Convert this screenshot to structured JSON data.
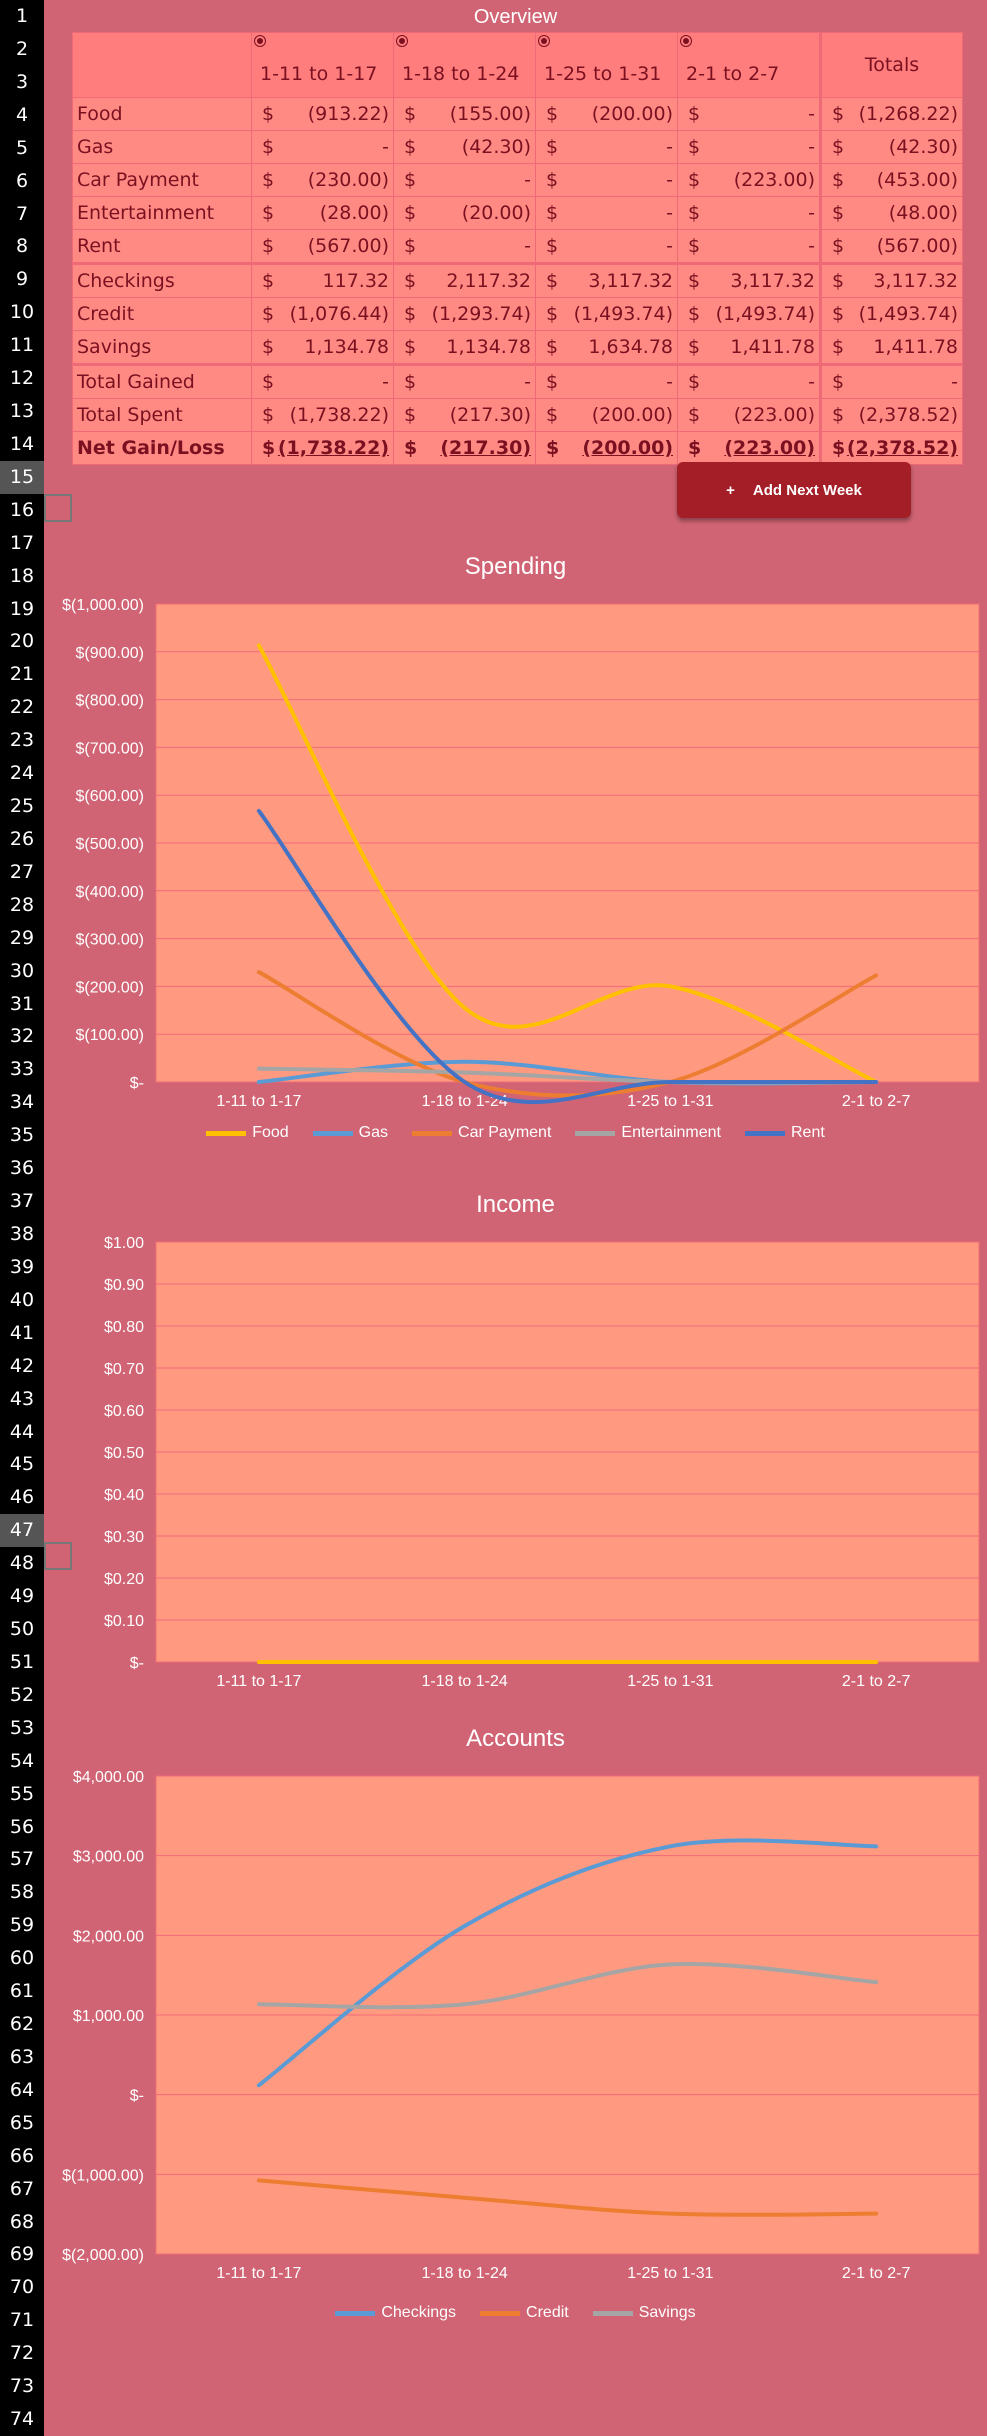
{
  "overview": {
    "title": "Overview",
    "periods": [
      "1-11 to 1-17",
      "1-18 to 1-24",
      "1-25 to 1-31",
      "2-1 to 2-7"
    ],
    "totals_label": "Totals",
    "currency": "$",
    "rows": [
      {
        "label": "Food",
        "values": [
          "(913.22)",
          "(155.00)",
          "(200.00)",
          "-"
        ],
        "total": "(1,268.22)"
      },
      {
        "label": "Gas",
        "values": [
          "-",
          "(42.30)",
          "-",
          "-"
        ],
        "total": "(42.30)"
      },
      {
        "label": "Car Payment",
        "values": [
          "(230.00)",
          "-",
          "-",
          "(223.00)"
        ],
        "total": "(453.00)"
      },
      {
        "label": "Entertainment",
        "values": [
          "(28.00)",
          "(20.00)",
          "-",
          "-"
        ],
        "total": "(48.00)"
      },
      {
        "label": "Rent",
        "values": [
          "(567.00)",
          "-",
          "-",
          "-"
        ],
        "total": "(567.00)"
      },
      {
        "label": "Checkings",
        "values": [
          "117.32",
          "2,117.32",
          "3,117.32",
          "3,117.32"
        ],
        "total": "3,117.32"
      },
      {
        "label": "Credit",
        "values": [
          "(1,076.44)",
          "(1,293.74)",
          "(1,493.74)",
          "(1,493.74)"
        ],
        "total": "(1,493.74)"
      },
      {
        "label": "Savings",
        "values": [
          "1,134.78",
          "1,134.78",
          "1,634.78",
          "1,411.78"
        ],
        "total": "1,411.78"
      },
      {
        "label": "Total Gained",
        "values": [
          "-",
          "-",
          "-",
          "-"
        ],
        "total": "-"
      },
      {
        "label": "Total Spent",
        "values": [
          "(1,738.22)",
          "(217.30)",
          "(200.00)",
          "(223.00)"
        ],
        "total": "(2,378.52)"
      },
      {
        "label": "Net Gain/Loss",
        "values": [
          "(1,738.22)",
          "(217.30)",
          "(200.00)",
          "(223.00)"
        ],
        "total": "(2,378.52)"
      }
    ]
  },
  "add_button": {
    "icon": "plus-icon",
    "label": "Add Next Week"
  },
  "row_numbers": [
    "1",
    "2",
    "3",
    "4",
    "5",
    "6",
    "7",
    "8",
    "9",
    "10",
    "11",
    "12",
    "13",
    "14",
    "15",
    "16",
    "17",
    "18",
    "19",
    "20",
    "21",
    "22",
    "23",
    "24",
    "25",
    "26",
    "27",
    "28",
    "29",
    "30",
    "31",
    "32",
    "33",
    "34",
    "35",
    "36",
    "37",
    "38",
    "39",
    "40",
    "41",
    "42",
    "43",
    "44",
    "45",
    "46",
    "47",
    "48",
    "49",
    "50",
    "51",
    "52",
    "53",
    "54",
    "55",
    "56",
    "57",
    "58",
    "59",
    "60",
    "61",
    "62",
    "63",
    "64",
    "65",
    "66",
    "67",
    "68",
    "69",
    "70",
    "71",
    "72",
    "73",
    "74"
  ],
  "selected_rows": [
    "15",
    "47"
  ],
  "colors": {
    "background": "#d06474",
    "plot": "#ff9a80",
    "table_fill": "#ff8a84",
    "button": "#a41e28"
  },
  "chart_data": [
    {
      "type": "line",
      "title": "Spending",
      "categories": [
        "1-11 to 1-17",
        "1-18 to 1-24",
        "1-25 to 1-31",
        "2-1 to 2-7"
      ],
      "y_ticks": [
        "$(1,000.00)",
        "$(900.00)",
        "$(800.00)",
        "$(700.00)",
        "$(600.00)",
        "$(500.00)",
        "$(400.00)",
        "$(300.00)",
        "$(200.00)",
        "$(100.00)",
        "$-"
      ],
      "ylim": [
        0,
        1000
      ],
      "series": [
        {
          "name": "Food",
          "color": "#ffc000",
          "values": [
            913.22,
            155,
            200,
            0
          ]
        },
        {
          "name": "Gas",
          "color": "#5b9bd5",
          "values": [
            0,
            42.3,
            0,
            0
          ]
        },
        {
          "name": "Car Payment",
          "color": "#ed7d31",
          "values": [
            230,
            0,
            0,
            223
          ]
        },
        {
          "name": "Entertainment",
          "color": "#a5a5a5",
          "values": [
            28,
            20,
            0,
            0
          ]
        },
        {
          "name": "Rent",
          "color": "#4472c4",
          "values": [
            567,
            0,
            0,
            0
          ]
        }
      ],
      "legend": "bottom",
      "grid": true
    },
    {
      "type": "line",
      "title": "Income",
      "categories": [
        "1-11 to 1-17",
        "1-18 to 1-24",
        "1-25 to 1-31",
        "2-1 to 2-7"
      ],
      "y_ticks": [
        "$1.00",
        "$0.90",
        "$0.80",
        "$0.70",
        "$0.60",
        "$0.50",
        "$0.40",
        "$0.30",
        "$0.20",
        "$0.10",
        "$-"
      ],
      "ylim": [
        0,
        1
      ],
      "series": [
        {
          "color": "#ffc000",
          "values": [
            0,
            0,
            0,
            0
          ]
        }
      ],
      "grid": true
    },
    {
      "type": "line",
      "title": "Accounts",
      "categories": [
        "1-11 to 1-17",
        "1-18 to 1-24",
        "1-25 to 1-31",
        "2-1 to 2-7"
      ],
      "y_ticks": [
        "$4,000.00",
        "$3,000.00",
        "$2,000.00",
        "$1,000.00",
        "$-",
        "$(1,000.00)",
        "$(2,000.00)"
      ],
      "ylim": [
        -2000,
        4000
      ],
      "series": [
        {
          "name": "Checkings",
          "color": "#5b9bd5",
          "values": [
            117.32,
            2117.32,
            3117.32,
            3117.32
          ]
        },
        {
          "name": "Credit",
          "color": "#ed7d31",
          "values": [
            -1076.44,
            -1293.74,
            -1493.74,
            -1493.74
          ]
        },
        {
          "name": "Savings",
          "color": "#a5a5a5",
          "values": [
            1134.78,
            1134.78,
            1634.78,
            1411.78
          ]
        }
      ],
      "legend": "bottom",
      "grid": true
    }
  ]
}
